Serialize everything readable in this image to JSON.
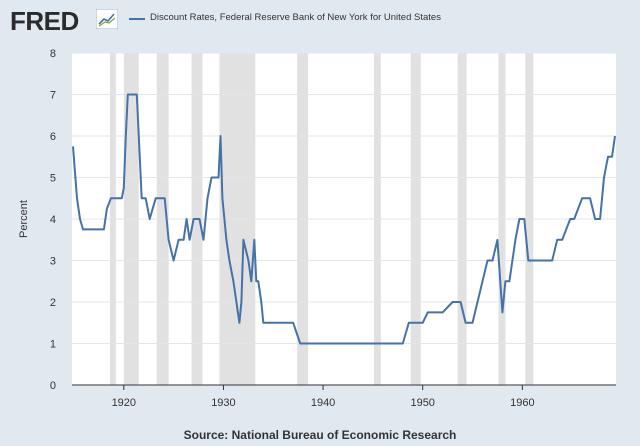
{
  "header": {
    "logo": "FRED"
  },
  "chart_data": {
    "type": "line",
    "title": "",
    "xlabel": "",
    "ylabel": "Percent",
    "ylim": [
      0,
      8
    ],
    "yticks": [
      0,
      1,
      2,
      3,
      4,
      5,
      6,
      7,
      8
    ],
    "xlim": [
      1914.8,
      1969.4
    ],
    "xticks": [
      "1920",
      "1930",
      "1940",
      "1950",
      "1960"
    ],
    "grid": true,
    "legend_position": "top",
    "source": "Source: National Bureau of Economic Research",
    "colors": {
      "line": "#4572a7",
      "recession": "#e1e1e1",
      "grid": "#e0e6ee",
      "plot_bg": "#ffffff"
    },
    "recessions": [
      [
        1918.6,
        1919.2
      ],
      [
        1920.0,
        1921.5
      ],
      [
        1923.3,
        1924.5
      ],
      [
        1926.8,
        1927.9
      ],
      [
        1929.6,
        1933.2
      ],
      [
        1937.4,
        1938.5
      ],
      [
        1945.1,
        1945.8
      ],
      [
        1948.8,
        1949.8
      ],
      [
        1953.5,
        1954.4
      ],
      [
        1957.6,
        1958.3
      ],
      [
        1960.3,
        1961.1
      ]
    ],
    "series": [
      {
        "name": "Discount Rates, Federal Reserve Bank of New York for United States",
        "x": [
          1914.9,
          1915.3,
          1915.6,
          1915.9,
          1916.5,
          1917.5,
          1918.0,
          1918.3,
          1918.7,
          1919.3,
          1919.8,
          1920.0,
          1920.2,
          1920.4,
          1921.3,
          1921.8,
          1922.2,
          1922.6,
          1923.2,
          1924.1,
          1924.5,
          1925.0,
          1925.5,
          1926.0,
          1926.3,
          1926.6,
          1927.0,
          1927.6,
          1928.0,
          1928.4,
          1928.8,
          1929.5,
          1929.7,
          1929.9,
          1930.3,
          1930.6,
          1931.0,
          1931.3,
          1931.6,
          1931.8,
          1932.0,
          1932.5,
          1932.8,
          1933.1,
          1933.3,
          1933.5,
          1933.8,
          1934.0,
          1935.0,
          1936.0,
          1937.0,
          1937.7,
          1938.0,
          1940.0,
          1942.0,
          1944.0,
          1946.0,
          1948.0,
          1948.3,
          1948.6,
          1949.0,
          1950.0,
          1950.5,
          1951.0,
          1952.0,
          1953.0,
          1953.8,
          1954.3,
          1955.0,
          1955.5,
          1956.0,
          1956.5,
          1957.0,
          1957.5,
          1958.0,
          1958.3,
          1958.7,
          1959.0,
          1959.3,
          1959.7,
          1960.2,
          1960.6,
          1961.0,
          1962.0,
          1963.0,
          1963.5,
          1964.0,
          1964.8,
          1965.2,
          1966.0,
          1966.8,
          1967.3,
          1967.8,
          1968.2,
          1968.6,
          1969.0,
          1969.3
        ],
        "values": [
          5.75,
          4.5,
          4.0,
          3.75,
          3.75,
          3.75,
          3.75,
          4.25,
          4.5,
          4.5,
          4.5,
          4.75,
          6.0,
          7.0,
          7.0,
          4.5,
          4.5,
          4.0,
          4.5,
          4.5,
          3.5,
          3.0,
          3.5,
          3.5,
          4.0,
          3.5,
          4.0,
          4.0,
          3.5,
          4.5,
          5.0,
          5.0,
          6.0,
          4.5,
          3.5,
          3.0,
          2.5,
          2.0,
          1.5,
          2.0,
          3.5,
          3.0,
          2.5,
          3.5,
          2.5,
          2.5,
          2.0,
          1.5,
          1.5,
          1.5,
          1.5,
          1.0,
          1.0,
          1.0,
          1.0,
          1.0,
          1.0,
          1.0,
          1.25,
          1.5,
          1.5,
          1.5,
          1.75,
          1.75,
          1.75,
          2.0,
          2.0,
          1.5,
          1.5,
          2.0,
          2.5,
          3.0,
          3.0,
          3.5,
          1.75,
          2.5,
          2.5,
          3.0,
          3.5,
          4.0,
          4.0,
          3.0,
          3.0,
          3.0,
          3.0,
          3.5,
          3.5,
          4.0,
          4.0,
          4.5,
          4.5,
          4.0,
          4.0,
          5.0,
          5.5,
          5.5,
          6.0
        ]
      }
    ]
  }
}
